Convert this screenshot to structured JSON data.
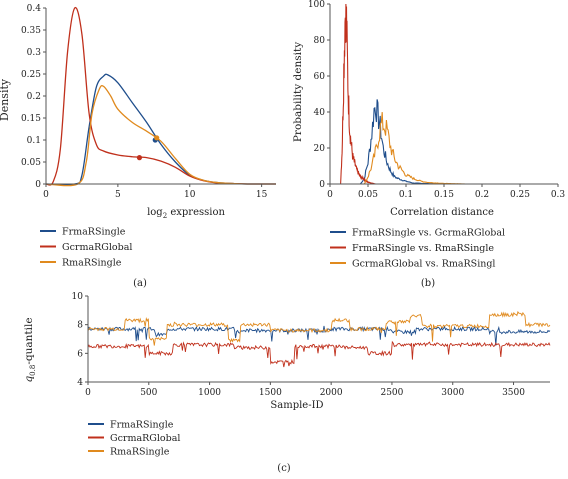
{
  "colors": {
    "blue": "#1f4e8c",
    "red": "#c0301c",
    "orange": "#e08a1e",
    "axis": "#555555"
  },
  "chart_data": [
    {
      "type": "line",
      "panel_label": "(a)",
      "ylabel": "Density",
      "xlabel_main": "log",
      "xlabel_sub": "2",
      "xlabel_rest": " expression",
      "xlim": [
        0,
        16
      ],
      "ylim": [
        0,
        0.4
      ],
      "xticks": [
        "0",
        "5",
        "10",
        "15"
      ],
      "yticks": [
        "0",
        "0.05",
        "0.1",
        "0.15",
        "0.2",
        "0.25",
        "0.3",
        "0.35",
        "0.4"
      ],
      "series": [
        {
          "name": "FrmaRSingle",
          "color": "#1f4e8c",
          "x": [
            0,
            2,
            2.5,
            3,
            3.5,
            4,
            4.3,
            5,
            6,
            7,
            8,
            9,
            10,
            11,
            12,
            13,
            14,
            16
          ],
          "y": [
            0,
            0,
            0.02,
            0.13,
            0.22,
            0.245,
            0.248,
            0.23,
            0.185,
            0.14,
            0.09,
            0.05,
            0.02,
            0.008,
            0.003,
            0.001,
            0,
            0
          ],
          "marker": {
            "x": 7.6,
            "y": 0.1
          }
        },
        {
          "name": "GcrmaRGlobal",
          "color": "#c0301c",
          "x": [
            0,
            0.5,
            1,
            1.5,
            2,
            2.5,
            3,
            3.5,
            4,
            5,
            6,
            7,
            8,
            9,
            10,
            11,
            12,
            13,
            14,
            16
          ],
          "y": [
            0,
            0.005,
            0.08,
            0.3,
            0.4,
            0.34,
            0.16,
            0.09,
            0.075,
            0.066,
            0.062,
            0.06,
            0.052,
            0.038,
            0.018,
            0.007,
            0.002,
            0.001,
            0,
            0
          ],
          "marker": {
            "x": 6.5,
            "y": 0.06
          }
        },
        {
          "name": "RmaRSingle",
          "color": "#e08a1e",
          "x": [
            0,
            2.2,
            2.8,
            3.2,
            3.7,
            4,
            4.5,
            5,
            6,
            7,
            8,
            9,
            10,
            11,
            12,
            13,
            14,
            16
          ],
          "y": [
            0,
            0,
            0.05,
            0.16,
            0.215,
            0.222,
            0.2,
            0.17,
            0.14,
            0.12,
            0.097,
            0.058,
            0.022,
            0.008,
            0.003,
            0.001,
            0,
            0
          ],
          "marker": {
            "x": 7.7,
            "y": 0.105
          }
        }
      ],
      "legend": [
        "FrmaRSingle",
        "GcrmaRGlobal",
        "RmaRSingle"
      ]
    },
    {
      "type": "line",
      "panel_label": "(b)",
      "ylabel": "Probability density",
      "xlabel": "Correlation distance",
      "xlim": [
        0,
        0.3
      ],
      "ylim": [
        0,
        100
      ],
      "xticks": [
        "0",
        "0.05",
        "0.1",
        "0.15",
        "0.2",
        "0.25",
        "0.3"
      ],
      "yticks": [
        "0",
        "20",
        "40",
        "60",
        "80",
        "100"
      ],
      "series": [
        {
          "name": "FrmaRSingle vs. GcrmaRGlobal",
          "color": "#1f4e8c",
          "x": [
            0.04,
            0.045,
            0.05,
            0.055,
            0.058,
            0.06,
            0.063,
            0.066,
            0.07,
            0.075,
            0.08,
            0.085,
            0.09,
            0.1,
            0.11,
            0.13,
            0.16
          ],
          "y": [
            0,
            3,
            12,
            28,
            41,
            44,
            38,
            32,
            20,
            12,
            7,
            4,
            3,
            1.5,
            0.5,
            0.2,
            0
          ]
        },
        {
          "name": "FrmaRSingle vs. RmaRSingle",
          "color": "#c0301c",
          "x": [
            0.014,
            0.016,
            0.018,
            0.02,
            0.021,
            0.022,
            0.024,
            0.026,
            0.028,
            0.03,
            0.035,
            0.04,
            0.05,
            0.06
          ],
          "y": [
            0,
            20,
            60,
            95,
            100,
            85,
            50,
            30,
            22,
            15,
            8,
            4,
            1,
            0
          ]
        },
        {
          "name": "GcrmaRGlobal vs. RmaRSingl",
          "color": "#e08a1e",
          "x": [
            0.045,
            0.05,
            0.055,
            0.06,
            0.065,
            0.068,
            0.07,
            0.075,
            0.08,
            0.085,
            0.09,
            0.1,
            0.11,
            0.12,
            0.13,
            0.15,
            0.18
          ],
          "y": [
            0,
            4,
            10,
            18,
            28,
            34,
            33,
            30,
            20,
            14,
            10,
            5,
            3,
            1.5,
            0.8,
            0.3,
            0
          ]
        }
      ],
      "legend": [
        "FrmaRSingle vs. GcrmaRGlobal",
        "FrmaRSingle vs. RmaRSingle",
        "GcrmaRGlobal vs. RmaRSingl"
      ]
    },
    {
      "type": "line",
      "panel_label": "(c)",
      "ylabel_main": "q",
      "ylabel_sub": "0.8",
      "ylabel_rest": "-quantile",
      "xlabel": "Sample-ID",
      "xlim": [
        0,
        3800
      ],
      "ylim": [
        4,
        10
      ],
      "xticks": [
        "0",
        "500",
        "1000",
        "1500",
        "2000",
        "2500",
        "3000",
        "3500"
      ],
      "yticks": [
        "4",
        "6",
        "8",
        "10"
      ],
      "series": [
        {
          "name": "FrmaRSingle",
          "color": "#1f4e8c",
          "base": 7.6,
          "segments": [
            [
              0,
              7.7
            ],
            [
              550,
              7.3
            ],
            [
              650,
              7.7
            ],
            [
              1200,
              7.5
            ],
            [
              1300,
              7.6
            ],
            [
              2000,
              7.7
            ],
            [
              2500,
              7.5
            ],
            [
              2700,
              7.7
            ],
            [
              3300,
              7.5
            ],
            [
              3800,
              7.6
            ]
          ]
        },
        {
          "name": "GcrmaRGlobal",
          "color": "#c0301c",
          "base": 6.6,
          "segments": [
            [
              0,
              6.5
            ],
            [
              500,
              6.0
            ],
            [
              700,
              6.6
            ],
            [
              1200,
              6.4
            ],
            [
              1500,
              5.4
            ],
            [
              1700,
              6.5
            ],
            [
              2100,
              6.4
            ],
            [
              2300,
              6.0
            ],
            [
              2500,
              6.6
            ],
            [
              3800,
              6.6
            ]
          ]
        },
        {
          "name": "RmaRSingle",
          "color": "#e08a1e",
          "base": 7.8,
          "segments": [
            [
              0,
              7.7
            ],
            [
              300,
              8.3
            ],
            [
              500,
              7.0
            ],
            [
              650,
              8.0
            ],
            [
              1150,
              6.9
            ],
            [
              1250,
              8.0
            ],
            [
              1500,
              7.6
            ],
            [
              2000,
              8.3
            ],
            [
              2150,
              7.7
            ],
            [
              2450,
              8.2
            ],
            [
              2650,
              8.6
            ],
            [
              2750,
              7.9
            ],
            [
              3300,
              8.7
            ],
            [
              3600,
              8.0
            ],
            [
              3800,
              7.9
            ]
          ]
        }
      ],
      "legend": [
        "FrmaRSingle",
        "GcrmaRGlobal",
        "RmaRSingle"
      ]
    }
  ]
}
